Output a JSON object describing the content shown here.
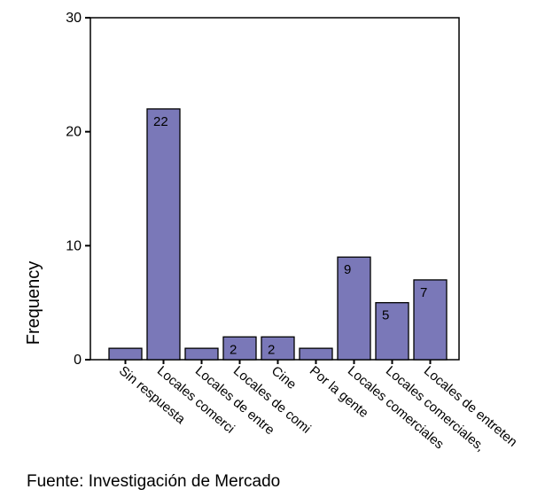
{
  "chart_data": {
    "type": "bar",
    "title": "",
    "xlabel": "",
    "ylabel": "Frequency",
    "ylim": [
      0,
      30
    ],
    "yticks": [
      0,
      10,
      20,
      30
    ],
    "grid": false,
    "bar_color": "#7a78b8",
    "categories": [
      "Sin respuesta",
      "Locales comerci",
      "Locales de entre",
      "Locales de comi",
      "Cine",
      "Por la gente",
      "Locales comerciales",
      "Locales comerciales,",
      "Locales de entreten"
    ],
    "values": [
      1,
      22,
      1,
      2,
      2,
      1,
      9,
      5,
      7
    ],
    "data_labels": [
      "",
      "22",
      "",
      "2",
      "2",
      "",
      "9",
      "5",
      "7"
    ]
  },
  "source_note": "Fuente: Investigación de Mercado"
}
